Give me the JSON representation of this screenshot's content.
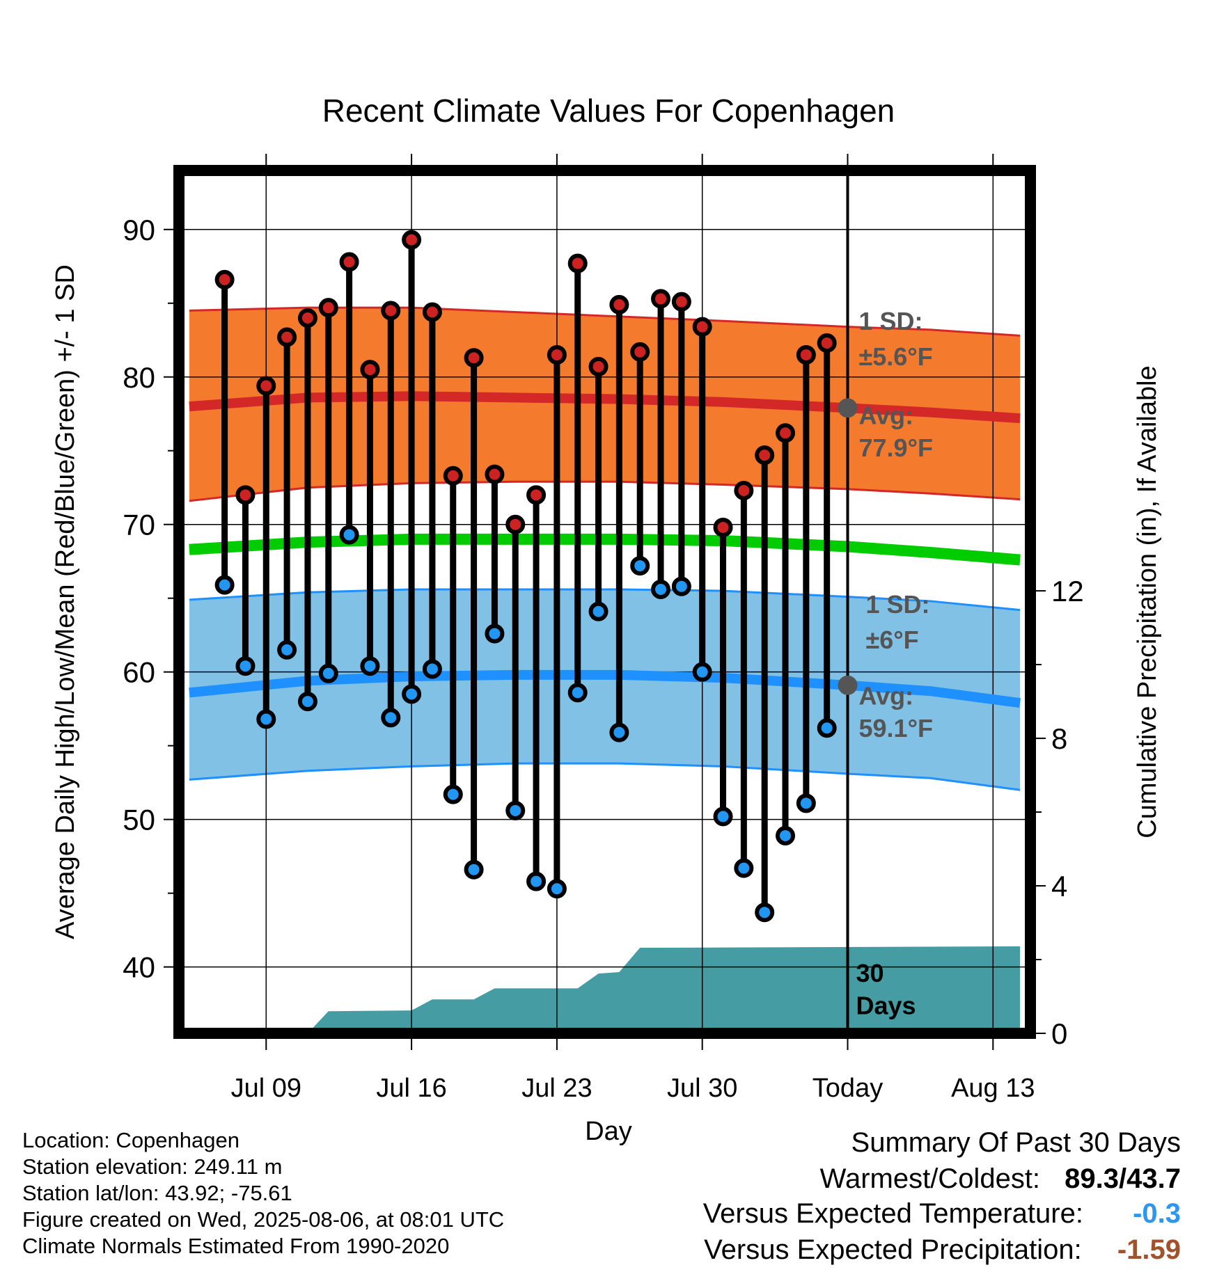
{
  "chart_data": {
    "type": "line",
    "title": "Recent Climate Values For Copenhagen",
    "xlabel": "Day",
    "ylabel": "Average Daily High/Low/Mean (Red/Blue/Green) +/- 1 SD",
    "y2label": "Cumulative Precipitation (in), If Available",
    "ylim": [
      35.5,
      94
    ],
    "y2lim": [
      0,
      23.4
    ],
    "xlim": [
      -1.2,
      39.8
    ],
    "yticks": [
      40,
      50,
      60,
      70,
      80,
      90
    ],
    "y2ticks": [
      0,
      4,
      8,
      12
    ],
    "xticks": [
      {
        "day": 3,
        "label": "Jul 09"
      },
      {
        "day": 10,
        "label": "Jul 16"
      },
      {
        "day": 17,
        "label": "Jul 23"
      },
      {
        "day": 24,
        "label": "Jul 30"
      },
      {
        "day": 31,
        "label": "Today"
      },
      {
        "day": 38,
        "label": "Aug 13"
      }
    ],
    "x_origin_date": "Jul 06",
    "grid": true,
    "daily_highs": [
      86.6,
      72.0,
      79.4,
      82.7,
      84.0,
      84.7,
      87.8,
      80.5,
      84.5,
      89.3,
      84.4,
      73.3,
      81.3,
      73.4,
      70.0,
      72.0,
      81.5,
      87.7,
      80.7,
      84.9,
      81.7,
      85.3,
      85.1,
      83.4,
      69.8,
      72.3,
      74.7,
      76.2,
      81.5,
      82.3
    ],
    "daily_lows": [
      65.9,
      60.4,
      56.8,
      61.5,
      58.0,
      59.9,
      69.3,
      60.4,
      56.9,
      58.5,
      60.2,
      51.7,
      46.6,
      62.6,
      50.6,
      45.8,
      45.3,
      58.6,
      64.1,
      55.9,
      67.2,
      65.6,
      65.8,
      60.0,
      50.2,
      46.7,
      43.7,
      48.9,
      51.1,
      56.2
    ],
    "normal_high": {
      "x": [
        -0.7,
        5,
        10,
        15,
        20,
        25,
        31,
        35,
        39.3
      ],
      "avg": [
        78.0,
        78.6,
        78.7,
        78.6,
        78.5,
        78.3,
        77.9,
        77.6,
        77.2
      ],
      "sd_upper": [
        84.5,
        84.7,
        84.7,
        84.4,
        84.1,
        83.8,
        83.4,
        83.2,
        82.8
      ],
      "sd_lower": [
        71.6,
        72.5,
        72.8,
        72.9,
        72.9,
        72.7,
        72.4,
        72.1,
        71.7
      ]
    },
    "normal_mean": {
      "x": [
        -0.7,
        5,
        10,
        15,
        20,
        25,
        31,
        35,
        39.3
      ],
      "avg": [
        68.3,
        68.8,
        69.0,
        69.0,
        69.0,
        68.9,
        68.5,
        68.1,
        67.6
      ]
    },
    "normal_low": {
      "x": [
        -0.7,
        5,
        10,
        15,
        20,
        25,
        31,
        35,
        39.3
      ],
      "avg": [
        58.6,
        59.4,
        59.7,
        59.8,
        59.8,
        59.6,
        59.1,
        58.7,
        57.9
      ],
      "sd_upper": [
        64.9,
        65.4,
        65.6,
        65.6,
        65.6,
        65.5,
        65.1,
        64.8,
        64.2
      ],
      "sd_lower": [
        52.7,
        53.3,
        53.6,
        53.8,
        53.8,
        53.6,
        53.1,
        52.8,
        52.0
      ]
    },
    "precip_cumulative": {
      "x": [
        -0.7,
        5,
        6,
        10,
        11,
        13,
        14,
        18,
        19,
        20,
        21,
        22,
        39.3
      ],
      "values": [
        0,
        0,
        0.6,
        0.62,
        0.92,
        0.92,
        1.22,
        1.22,
        1.62,
        1.66,
        2.32,
        2.32,
        2.36
      ]
    },
    "annotations": {
      "high_sd_label": "1 SD:",
      "high_sd_value": "±5.6°F",
      "high_avg_label": "Avg:",
      "high_avg_value": "77.9°F",
      "low_sd_label": "1 SD:",
      "low_sd_value": "±6°F",
      "low_avg_label": "Avg:",
      "low_avg_value": "59.1°F",
      "period_label_1": "30",
      "period_label_2": "Days"
    }
  },
  "colors": {
    "high_band": "#f47b2e",
    "high_line": "#d42828",
    "mean_line": "#00cc00",
    "low_band": "#82c1e6",
    "low_line": "#1e90ff",
    "precip": "#469ca3",
    "high_marker": "#cc2222",
    "low_marker": "#2196f3",
    "annotation_text": "#555555",
    "versus_temp": "#2e96ee",
    "versus_precip": "#a0522d"
  },
  "info": {
    "location": "Location: Copenhagen",
    "elevation": "Station elevation: 249.11 m",
    "latlon": "Station lat/lon: 43.92; -75.61",
    "created": "Figure created on Wed, 2025-08-06, at 08:01 UTC",
    "normals": "Climate Normals Estimated From 1990-2020"
  },
  "summary": {
    "title": "Summary Of Past 30 Days",
    "warmest_label": "Warmest/Coldest:",
    "warmest_value": "89.3/43.7",
    "temp_label": "Versus Expected Temperature:",
    "temp_value": "-0.3",
    "precip_label": "Versus Expected Precipitation:",
    "precip_value": "-1.59"
  }
}
